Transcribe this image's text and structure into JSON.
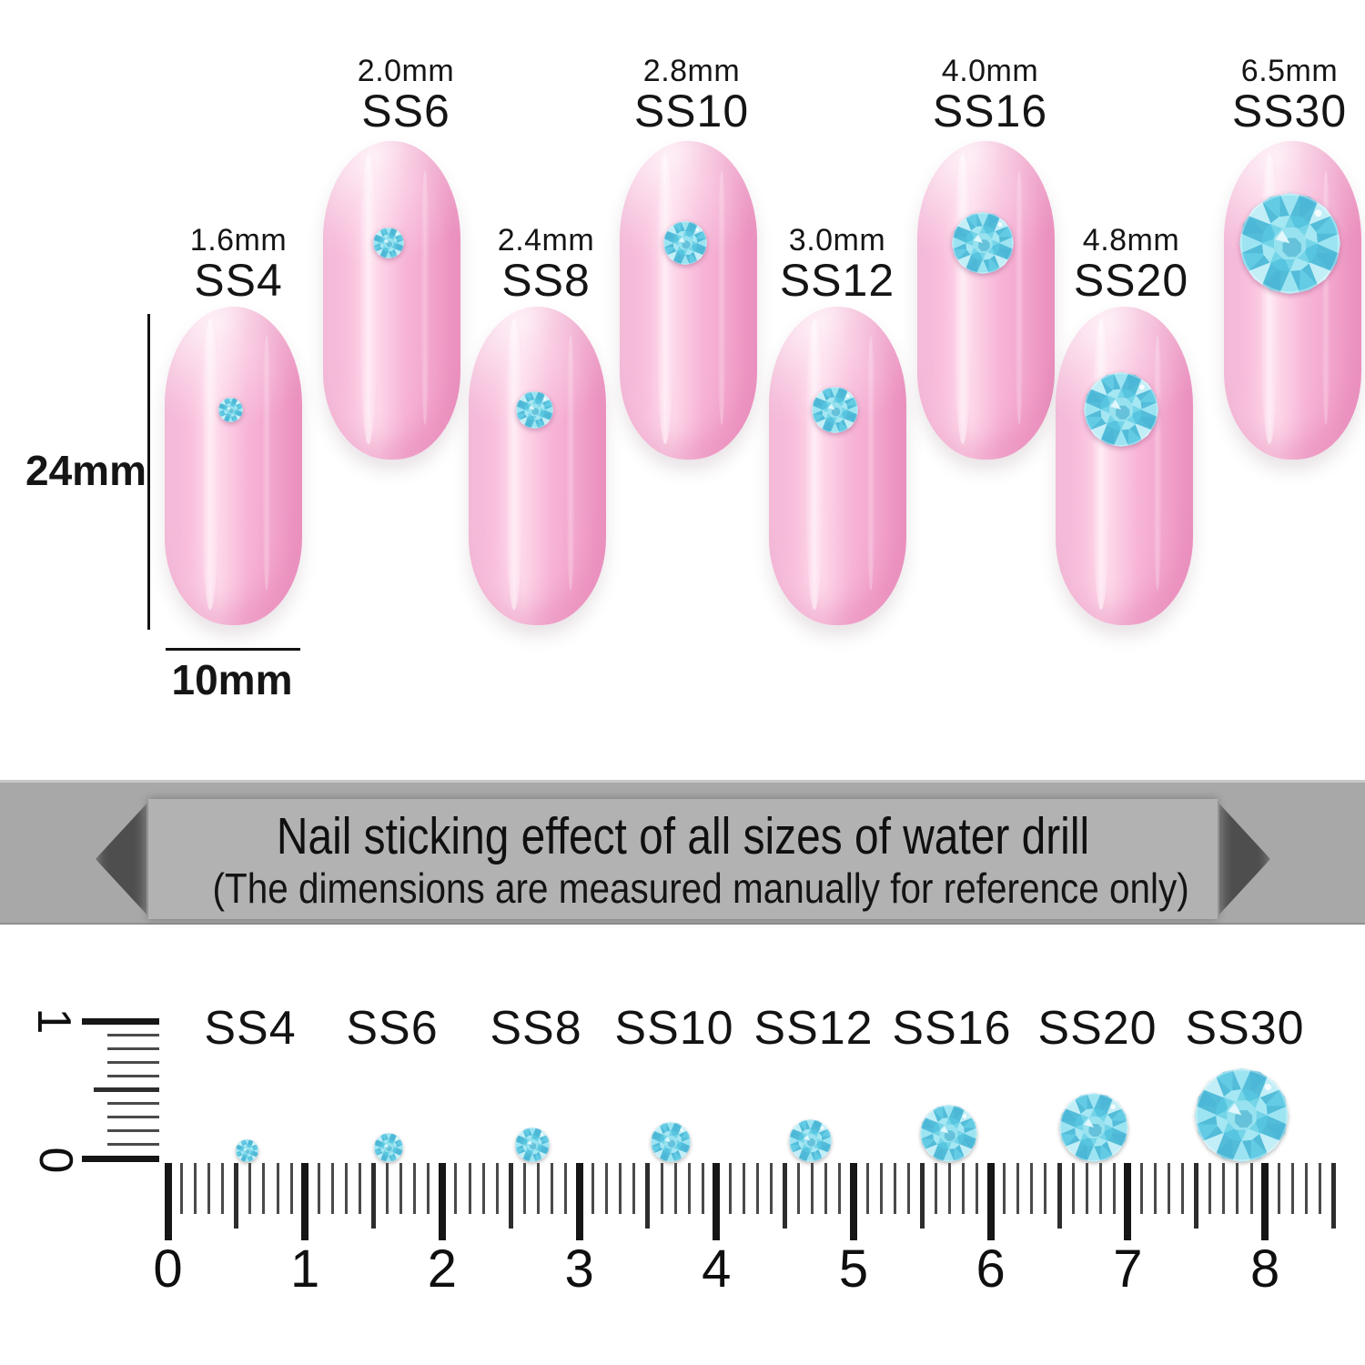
{
  "size_chart": {
    "height_label": "24mm",
    "width_label": "10mm",
    "items": [
      {
        "mm_label": "1.6mm",
        "ss": "SS4",
        "mm": 1.6,
        "row": "low"
      },
      {
        "mm_label": "2.0mm",
        "ss": "SS6",
        "mm": 2.0,
        "row": "high"
      },
      {
        "mm_label": "2.4mm",
        "ss": "SS8",
        "mm": 2.4,
        "row": "low"
      },
      {
        "mm_label": "2.8mm",
        "ss": "SS10",
        "mm": 2.8,
        "row": "high"
      },
      {
        "mm_label": "3.0mm",
        "ss": "SS12",
        "mm": 3.0,
        "row": "low"
      },
      {
        "mm_label": "4.0mm",
        "ss": "SS16",
        "mm": 4.0,
        "row": "high"
      },
      {
        "mm_label": "4.8mm",
        "ss": "SS20",
        "mm": 4.8,
        "row": "low"
      },
      {
        "mm_label": "6.5mm",
        "ss": "SS30",
        "mm": 6.5,
        "row": "high"
      }
    ]
  },
  "banner": {
    "title": "Nail sticking effect of all sizes of water drill",
    "subtitle": "(The dimensions are measured manually for reference only)"
  },
  "ruler": {
    "ss_labels": [
      "SS4",
      "SS6",
      "SS8",
      "SS10",
      "SS12",
      "SS16",
      "SS20",
      "SS30"
    ],
    "gem_mm": [
      1.6,
      2.0,
      2.4,
      2.8,
      3.0,
      4.0,
      4.8,
      6.5
    ],
    "h_numbers": [
      "0",
      "1",
      "2",
      "3",
      "4",
      "5",
      "6",
      "7",
      "8"
    ],
    "v_numbers": [
      "1",
      "0"
    ]
  },
  "colors": {
    "nail_pink_edge": "#ee97c5",
    "nail_pink_edge2": "#f2a2cb",
    "nail_pink_mid": "#f7b4d6",
    "nail_pink_light": "#fdd6e9",
    "banner_gray": "#a8a8a8",
    "banner_panel_gray": "#b2b2b2",
    "text_black": "#141414",
    "gem_base": "#52bcd9",
    "gem_facets": [
      "#9de4f2",
      "#4cb7d6",
      "#c2eef7",
      "#63cbe4"
    ],
    "gem_mid": "#74d4e8",
    "gem_mid_light": "#a5e7f3",
    "gem_mid_dark": "#57c5df",
    "gem_table": "#98e2f0",
    "gem_table_shadow": "#3da7c9",
    "gem_highlight": "#e9fafd"
  }
}
